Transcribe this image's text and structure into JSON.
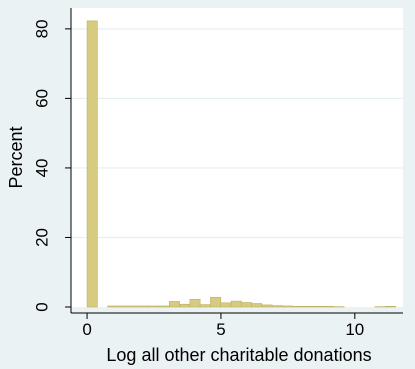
{
  "chart_data": {
    "type": "bar",
    "subtype": "histogram",
    "title": "",
    "xlabel": "Log all other charitable donations",
    "ylabel": "Percent",
    "xlim": [
      -0.6,
      11.8
    ],
    "ylim": [
      0,
      86
    ],
    "x_ticks": [
      0,
      5,
      10
    ],
    "y_ticks": [
      0,
      20,
      40,
      60,
      80
    ],
    "bin_width": 0.384,
    "bins": [
      {
        "x_start": 0.0,
        "value": 82.3
      },
      {
        "x_start": 0.38,
        "value": 0.0
      },
      {
        "x_start": 0.77,
        "value": 0.3
      },
      {
        "x_start": 1.15,
        "value": 0.3
      },
      {
        "x_start": 1.54,
        "value": 0.3
      },
      {
        "x_start": 1.92,
        "value": 0.3
      },
      {
        "x_start": 2.3,
        "value": 0.3
      },
      {
        "x_start": 2.69,
        "value": 0.3
      },
      {
        "x_start": 3.07,
        "value": 1.6
      },
      {
        "x_start": 3.46,
        "value": 0.8
      },
      {
        "x_start": 3.84,
        "value": 2.2
      },
      {
        "x_start": 4.22,
        "value": 0.7
      },
      {
        "x_start": 4.61,
        "value": 2.8
      },
      {
        "x_start": 4.99,
        "value": 1.2
      },
      {
        "x_start": 5.38,
        "value": 1.7
      },
      {
        "x_start": 5.76,
        "value": 1.3
      },
      {
        "x_start": 6.14,
        "value": 1.0
      },
      {
        "x_start": 6.53,
        "value": 0.6
      },
      {
        "x_start": 6.91,
        "value": 0.4
      },
      {
        "x_start": 7.3,
        "value": 0.3
      },
      {
        "x_start": 7.68,
        "value": 0.2
      },
      {
        "x_start": 8.06,
        "value": 0.2
      },
      {
        "x_start": 8.45,
        "value": 0.2
      },
      {
        "x_start": 8.83,
        "value": 0.2
      },
      {
        "x_start": 9.22,
        "value": 0.1
      },
      {
        "x_start": 10.75,
        "value": 0.1
      },
      {
        "x_start": 11.14,
        "value": 0.2
      }
    ],
    "grid": true,
    "colors": {
      "background": "#eaf2f3",
      "plot_background": "#ffffff",
      "bar_fill": "#d7cb80",
      "bar_stroke": "#bdb060",
      "grid": "#e8eff2",
      "axis": "#000000"
    }
  }
}
